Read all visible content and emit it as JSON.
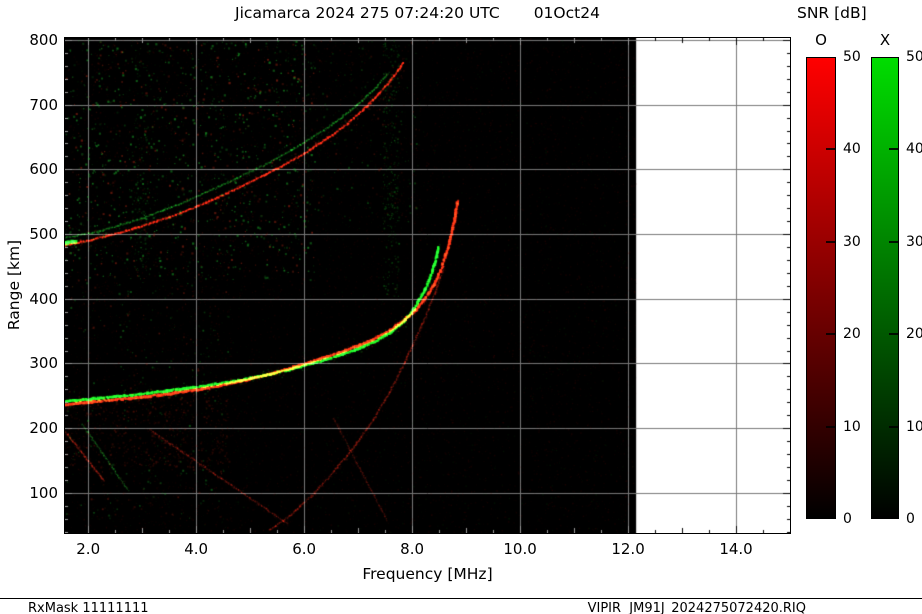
{
  "header": {
    "title": "Jicamarca 2024 275 07:24:20 UTC",
    "date": "01Oct24"
  },
  "colorbar_title": "SNR [dB]",
  "footer": {
    "left": "RxMask 11111111",
    "right": "VIPIR  JM91J_2024275072420.RIQ"
  },
  "chart_data": {
    "type": "heatmap",
    "subtype": "ionogram",
    "title": "Jicamarca 2024 275 07:24:20 UTC 01Oct24",
    "xlabel": "Frequency [MHz]",
    "ylabel": "Range [km]",
    "xlim": [
      1.57,
      15.0
    ],
    "ylim": [
      38,
      803
    ],
    "x_data_max": 12.15,
    "xticks": [
      2.0,
      4.0,
      6.0,
      8.0,
      10.0,
      12.0,
      14.0
    ],
    "xtick_labels": [
      "2.0",
      "4.0",
      "6.0",
      "8.0",
      "10.0",
      "12.0",
      "14.0"
    ],
    "yticks": [
      100,
      200,
      300,
      400,
      500,
      600,
      700,
      800
    ],
    "grid": true,
    "grid_color": "#787878",
    "tick_color_on_data": "#9a9a9a",
    "background": "#000000",
    "legend_position": "right",
    "colorbars": [
      {
        "label": "O",
        "color": "#ff0000",
        "min": 0,
        "max": 50,
        "ticks": [
          0,
          10,
          20,
          30,
          40,
          50
        ]
      },
      {
        "label": "X",
        "color": "#00dd00",
        "min": 0,
        "max": 50,
        "ticks": [
          0,
          10,
          20,
          30,
          40,
          50
        ]
      }
    ],
    "traces": [
      {
        "name": "F-trace-O-1st-hop",
        "mode": "O",
        "color": "#ff2a10",
        "width": 2.4,
        "intensity": 0.92,
        "fuzz_km": 5,
        "points": [
          [
            1.57,
            236
          ],
          [
            2.0,
            240
          ],
          [
            2.5,
            244
          ],
          [
            3.0,
            248
          ],
          [
            3.5,
            253
          ],
          [
            4.0,
            259
          ],
          [
            4.4,
            265
          ],
          [
            4.8,
            272
          ],
          [
            5.2,
            280
          ],
          [
            5.6,
            289
          ],
          [
            6.0,
            299
          ],
          [
            6.4,
            310
          ],
          [
            6.8,
            321
          ],
          [
            7.2,
            334
          ],
          [
            7.5,
            347
          ],
          [
            7.8,
            363
          ],
          [
            8.0,
            377
          ],
          [
            8.2,
            395
          ],
          [
            8.4,
            420
          ],
          [
            8.55,
            448
          ],
          [
            8.68,
            483
          ],
          [
            8.78,
            518
          ],
          [
            8.85,
            552
          ]
        ]
      },
      {
        "name": "F-trace-X-1st-hop",
        "mode": "X",
        "color": "#16e41e",
        "width": 2.4,
        "intensity": 0.9,
        "fuzz_km": 5,
        "points": [
          [
            1.57,
            241
          ],
          [
            2.2,
            246
          ],
          [
            3.0,
            253
          ],
          [
            3.7,
            260
          ],
          [
            4.3,
            267
          ],
          [
            4.9,
            275
          ],
          [
            5.4,
            284
          ],
          [
            5.9,
            294
          ],
          [
            6.4,
            306
          ],
          [
            6.9,
            319
          ],
          [
            7.3,
            333
          ],
          [
            7.6,
            348
          ],
          [
            7.85,
            365
          ],
          [
            8.05,
            386
          ],
          [
            8.25,
            415
          ],
          [
            8.4,
            448
          ],
          [
            8.5,
            482
          ]
        ]
      },
      {
        "name": "F-trace-O-2nd-hop",
        "mode": "O",
        "color": "#e82410",
        "width": 1.8,
        "intensity": 0.75,
        "fuzz_km": 9,
        "points": [
          [
            1.57,
            482
          ],
          [
            2.0,
            490
          ],
          [
            2.5,
            500
          ],
          [
            3.0,
            512
          ],
          [
            3.5,
            526
          ],
          [
            4.0,
            542
          ],
          [
            4.5,
            560
          ],
          [
            5.0,
            580
          ],
          [
            5.5,
            601
          ],
          [
            6.0,
            624
          ],
          [
            6.4,
            646
          ],
          [
            6.8,
            670
          ],
          [
            7.2,
            700
          ],
          [
            7.5,
            727
          ],
          [
            7.7,
            748
          ],
          [
            7.85,
            766
          ]
        ]
      },
      {
        "name": "F-trace-X-2nd-hop",
        "mode": "X",
        "color": "#1cc428",
        "width": 1.5,
        "intensity": 0.45,
        "fuzz_km": 16,
        "points": [
          [
            1.57,
            494
          ],
          [
            2.2,
            504
          ],
          [
            3.0,
            524
          ],
          [
            3.8,
            550
          ],
          [
            4.6,
            580
          ],
          [
            5.3,
            608
          ],
          [
            5.9,
            636
          ],
          [
            6.5,
            668
          ],
          [
            7.0,
            700
          ],
          [
            7.35,
            728
          ],
          [
            7.55,
            748
          ]
        ]
      },
      {
        "name": "oblique-echo",
        "mode": "O",
        "color": "#c81e0e",
        "width": 1.4,
        "intensity": 0.45,
        "fuzz_km": 4,
        "points": [
          [
            5.35,
            42
          ],
          [
            5.7,
            62
          ],
          [
            6.1,
            92
          ],
          [
            6.5,
            128
          ],
          [
            6.9,
            168
          ],
          [
            7.3,
            215
          ],
          [
            7.6,
            258
          ],
          [
            7.9,
            308
          ],
          [
            8.2,
            362
          ],
          [
            8.45,
            415
          ],
          [
            8.6,
            452
          ]
        ]
      },
      {
        "name": "slant-streak-1",
        "mode": "O",
        "color": "#d02212",
        "width": 1.4,
        "intensity": 0.5,
        "fuzz_km": 3,
        "points": [
          [
            1.57,
            195
          ],
          [
            2.3,
            118
          ]
        ]
      },
      {
        "name": "slant-streak-2",
        "mode": "X",
        "color": "#1eb428",
        "width": 1.2,
        "intensity": 0.42,
        "fuzz_km": 3,
        "points": [
          [
            1.9,
            205
          ],
          [
            2.75,
            103
          ]
        ]
      },
      {
        "name": "slant-streak-3",
        "mode": "O",
        "color": "#c01e10",
        "width": 1.3,
        "intensity": 0.42,
        "fuzz_km": 4,
        "points": [
          [
            3.15,
            197
          ],
          [
            5.7,
            52
          ]
        ]
      },
      {
        "name": "slant-streak-4",
        "mode": "O",
        "color": "#b01c0e",
        "width": 1.2,
        "intensity": 0.32,
        "fuzz_km": 4,
        "points": [
          [
            6.55,
            215
          ],
          [
            7.55,
            55
          ]
        ]
      },
      {
        "name": "left-edge-blob",
        "mode": "X",
        "color": "#22ff2c",
        "width": 3.2,
        "intensity": 0.95,
        "fuzz_km": 6,
        "points": [
          [
            1.57,
            486
          ],
          [
            1.78,
            489
          ]
        ]
      }
    ],
    "noise_regions": [
      {
        "name": "background-grain-red",
        "x": [
          1.57,
          12.15
        ],
        "y": [
          38,
          803
        ],
        "n": 9000,
        "colors": [
          "#7c1006"
        ],
        "alpha": [
          0.04,
          0.2
        ],
        "size": 1
      },
      {
        "name": "background-grain-green",
        "x": [
          1.57,
          12.15
        ],
        "y": [
          38,
          803
        ],
        "n": 2600,
        "colors": [
          "#0b6e12"
        ],
        "alpha": [
          0.04,
          0.16
        ],
        "size": 1
      },
      {
        "name": "spread-F-cloud",
        "x": [
          1.57,
          6.2
        ],
        "y": [
          430,
          800
        ],
        "n": 1100,
        "colors": [
          "#1fbf2f",
          "#22cc33",
          "#b42a16"
        ],
        "alpha": [
          0.12,
          0.55
        ],
        "size": 1.4
      },
      {
        "name": "lower-left-clutter",
        "x": [
          1.57,
          4.6
        ],
        "y": [
          60,
          430
        ],
        "n": 330,
        "colors": [
          "#b42a16",
          "#1fbf2f"
        ],
        "alpha": [
          0.08,
          0.4
        ],
        "size": 1.3
      },
      {
        "name": "under-trace-haze",
        "x": [
          1.57,
          4.6
        ],
        "y": [
          140,
          250
        ],
        "n": 500,
        "colors": [
          "#a02010"
        ],
        "alpha": [
          0.06,
          0.3
        ],
        "size": 1.3
      },
      {
        "name": "upper-mid-cloud",
        "x": [
          6.0,
          8.1
        ],
        "y": [
          520,
          800
        ],
        "n": 220,
        "colors": [
          "#18a824",
          "#a02412"
        ],
        "alpha": [
          0.08,
          0.35
        ],
        "size": 1.3
      },
      {
        "name": "rfi-stripe-7p6",
        "x": [
          7.45,
          7.75
        ],
        "y": [
          400,
          800
        ],
        "n": 260,
        "colors": [
          "#18a824"
        ],
        "alpha": [
          0.08,
          0.35
        ],
        "size": 1.2
      },
      {
        "name": "rfi-stripe-3p0",
        "x": [
          2.85,
          3.1
        ],
        "y": [
          430,
          790
        ],
        "n": 140,
        "colors": [
          "#18a824"
        ],
        "alpha": [
          0.06,
          0.3
        ],
        "size": 1.2
      }
    ]
  }
}
